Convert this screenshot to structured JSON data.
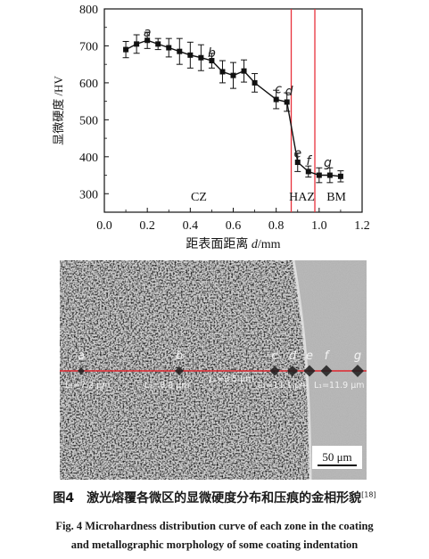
{
  "chart_data": {
    "type": "line",
    "xlabel_prefix": "距表面距离 ",
    "xlabel_var": "d",
    "xlabel_unit": "/mm",
    "ylabel": "显微硬度 /HV",
    "xlim": [
      0.0,
      1.2
    ],
    "ylim": [
      250,
      800
    ],
    "xticks": [
      "0.0",
      "0.2",
      "0.4",
      "0.6",
      "0.8",
      "1.0",
      "1.2"
    ],
    "yticks": [
      "300",
      "400",
      "500",
      "600",
      "700",
      "800"
    ],
    "x": [
      0.1,
      0.15,
      0.2,
      0.25,
      0.3,
      0.35,
      0.4,
      0.45,
      0.5,
      0.55,
      0.6,
      0.65,
      0.7,
      0.8,
      0.85,
      0.9,
      0.95,
      1.0,
      1.05,
      1.1
    ],
    "y": [
      690,
      705,
      715,
      705,
      695,
      685,
      675,
      668,
      660,
      630,
      620,
      632,
      600,
      555,
      548,
      385,
      360,
      350,
      350,
      347
    ],
    "err": [
      22,
      25,
      22,
      15,
      25,
      35,
      35,
      35,
      20,
      30,
      35,
      30,
      25,
      25,
      25,
      25,
      15,
      20,
      20,
      15
    ],
    "point_labels": [
      {
        "text": "a",
        "x": 0.2,
        "y": 725
      },
      {
        "text": "b",
        "x": 0.5,
        "y": 670
      },
      {
        "text": "c",
        "x": 0.81,
        "y": 572
      },
      {
        "text": "d",
        "x": 0.86,
        "y": 566
      },
      {
        "text": "e",
        "x": 0.9,
        "y": 398
      },
      {
        "text": "f",
        "x": 0.95,
        "y": 378
      },
      {
        "text": "g",
        "x": 1.04,
        "y": 373
      }
    ],
    "boundaries": [
      0.87,
      0.98
    ],
    "boundary_color": "#e8323c",
    "zone_labels": [
      {
        "text": "CZ",
        "x": 0.44
      },
      {
        "text": "HAZ",
        "x": 0.92
      },
      {
        "text": "BM",
        "x": 1.08
      }
    ]
  },
  "micrograph": {
    "letters": [
      "a",
      "b",
      "c",
      "d",
      "e",
      "f",
      "g"
    ],
    "measurements": [
      "L₁=7.2 μm",
      "L₁=8.8 μm",
      "L₁=9.5 μm",
      "L₁=11.1 μm",
      "L₁=11.9 μm"
    ],
    "scale_bar": "50 μm",
    "line_color": "#e0262e"
  },
  "caption": {
    "cn": "图4　激光熔覆各微区的显微硬度分布和压痕的金相形貌",
    "cn_ref": "[18]",
    "en_line1": "Fig. 4    Microhardness distribution curve of each zone in the coating",
    "en_line2": "and metallographic morphology of some coating indentation"
  }
}
